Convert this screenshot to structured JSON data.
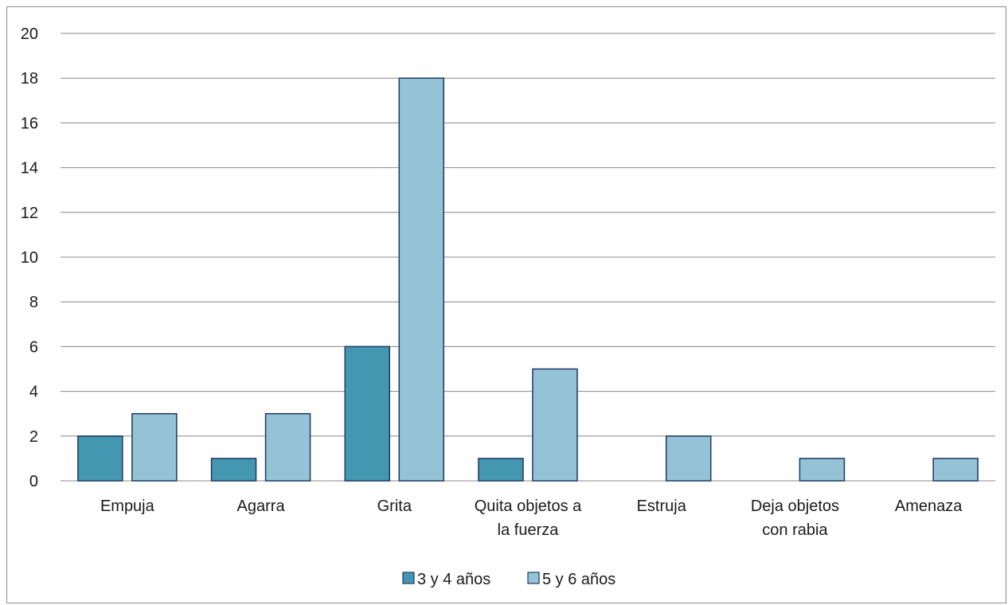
{
  "chart_data": {
    "type": "bar",
    "categories": [
      [
        "Empuja"
      ],
      [
        "Agarra"
      ],
      [
        "Grita"
      ],
      [
        "Quita objetos a",
        "la fuerza"
      ],
      [
        "Estruja"
      ],
      [
        "Deja objetos",
        "con rabia"
      ],
      [
        "Amenaza"
      ]
    ],
    "series": [
      {
        "name": "3 y 4 años",
        "values": [
          2,
          1,
          6,
          1,
          null,
          null,
          null
        ],
        "color": "#4397b0"
      },
      {
        "name": "5 y 6 años",
        "values": [
          3,
          3,
          18,
          5,
          2,
          1,
          1
        ],
        "color": "#94c3d6"
      }
    ],
    "ylim": [
      0,
      20
    ],
    "yticks": [
      0,
      2,
      4,
      6,
      8,
      10,
      12,
      14,
      16,
      18,
      20
    ],
    "grid": true,
    "legend_position": "bottom",
    "bar_border_color": "#1f3864",
    "grid_color": "#888888"
  }
}
